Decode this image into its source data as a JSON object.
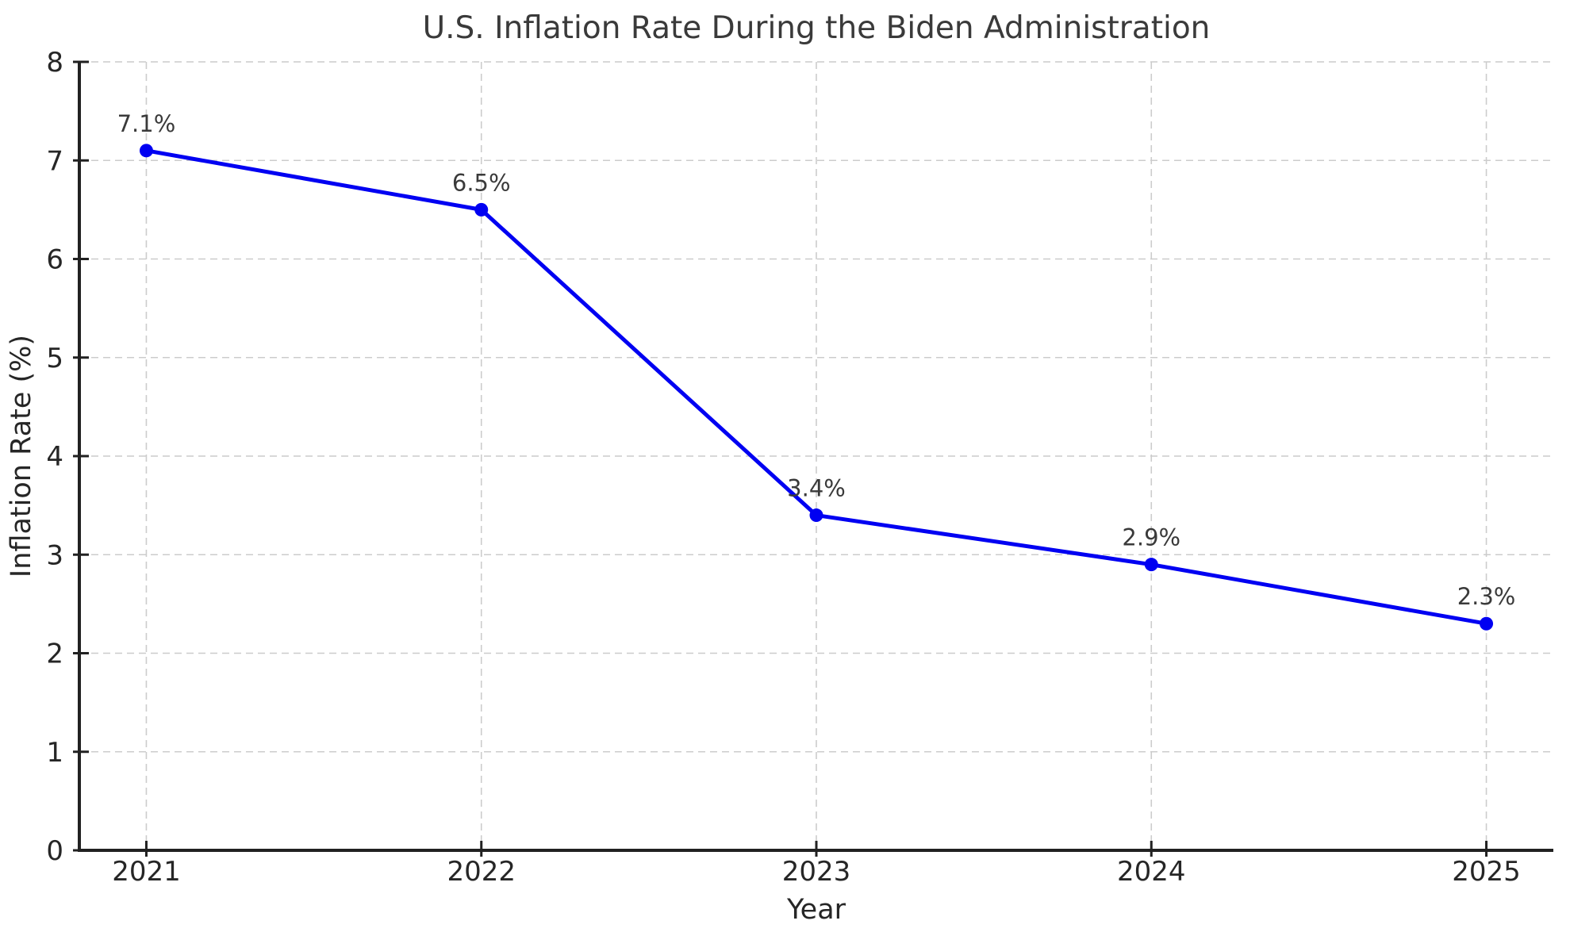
{
  "chart_data": {
    "type": "line",
    "title": "U.S. Inflation Rate During the Biden Administration",
    "xlabel": "Year",
    "ylabel": "Inflation Rate (%)",
    "categories": [
      2021,
      2022,
      2023,
      2024,
      2025
    ],
    "values": [
      7.1,
      6.5,
      3.4,
      2.9,
      2.3
    ],
    "point_labels": [
      "7.1%",
      "6.5%",
      "3.4%",
      "2.9%",
      "2.3%"
    ],
    "series_name": "Inflation Rate",
    "xlim": [
      2020.8,
      2025.2
    ],
    "ylim": [
      0,
      8
    ],
    "yticks": [
      0,
      1,
      2,
      3,
      4,
      5,
      6,
      7,
      8
    ],
    "grid": true,
    "grid_style": "dashed",
    "legend": "none",
    "colors": {
      "line": "#0000f2",
      "marker": "#0000f2",
      "grid": "#cccccc",
      "spine": "#212121",
      "title_text": "#3a3a3a",
      "tick_text": "#262626",
      "point_label_text": "#3a3a3a",
      "background": "#ffffff"
    }
  }
}
